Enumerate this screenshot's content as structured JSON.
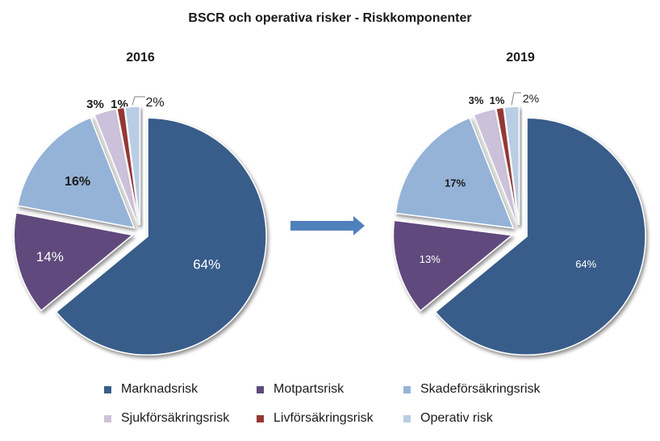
{
  "chart_data": [
    {
      "type": "pie",
      "title": "2016",
      "categories": [
        "Marknadsrisk",
        "Motpartsrisk",
        "Skadeförsäkringsrisk",
        "Sjukförsäkringsrisk",
        "Livförsäkringsrisk",
        "Operativ risk"
      ],
      "values": [
        64,
        14,
        16,
        3,
        1,
        2
      ],
      "labels": [
        "64%",
        "14%",
        "16%",
        "3%",
        "1%",
        "2%"
      ]
    },
    {
      "type": "pie",
      "title": "2019",
      "categories": [
        "Marknadsrisk",
        "Motpartsrisk",
        "Skadeförsäkringsrisk",
        "Sjukförsäkringsrisk",
        "Livförsäkringsrisk",
        "Operativ risk"
      ],
      "values": [
        64,
        13,
        17,
        3,
        1,
        2
      ],
      "labels": [
        "64%",
        "13%",
        "17%",
        "3%",
        "1%",
        "2%"
      ]
    }
  ],
  "figure": {
    "title": "BSCR och operativa risker - Riskkomponenter"
  },
  "legend": [
    {
      "label": "Marknadsrisk",
      "color": "#385D8A"
    },
    {
      "label": "Motpartsrisk",
      "color": "#604A7B"
    },
    {
      "label": "Skadeförsäkringsrisk",
      "color": "#95B3D7"
    },
    {
      "label": "Sjukförsäkringsrisk",
      "color": "#CCC1DA"
    },
    {
      "label": "Livförsäkringsrisk",
      "color": "#953735"
    },
    {
      "label": "Operativ risk",
      "color": "#B9CDE5"
    }
  ],
  "colors": {
    "arrow": "#4F81BD"
  }
}
